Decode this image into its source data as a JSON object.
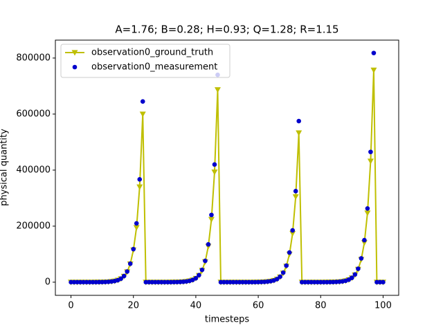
{
  "chart_data": {
    "type": "line",
    "title": "A=1.76; B=0.28; H=0.93; Q=1.28; R=1.15",
    "x_label": "timesteps",
    "y_label": "physical quantity",
    "x": [
      0,
      1,
      2,
      3,
      4,
      5,
      6,
      7,
      8,
      9,
      10,
      11,
      12,
      13,
      14,
      15,
      16,
      17,
      18,
      19,
      20,
      21,
      22,
      23,
      24,
      25,
      26,
      27,
      28,
      29,
      30,
      31,
      32,
      33,
      34,
      35,
      36,
      37,
      38,
      39,
      40,
      41,
      42,
      43,
      44,
      45,
      46,
      47,
      48,
      49,
      50,
      51,
      52,
      53,
      54,
      55,
      56,
      57,
      58,
      59,
      60,
      61,
      62,
      63,
      64,
      65,
      66,
      67,
      68,
      69,
      70,
      71,
      72,
      73,
      74,
      75,
      76,
      77,
      78,
      79,
      80,
      81,
      82,
      83,
      84,
      85,
      86,
      87,
      88,
      89,
      90,
      91,
      92,
      93,
      94,
      95,
      96,
      97,
      98,
      99,
      100
    ],
    "series": [
      {
        "name": "observation0_ground_truth",
        "color": "#bfbf00",
        "style": "line-triangle",
        "values": [
          2,
          3,
          5,
          9,
          15,
          26,
          45,
          80,
          140,
          250,
          430,
          750,
          1300,
          2300,
          4000,
          7000,
          12000,
          21000,
          37000,
          65000,
          115000,
          195000,
          340000,
          600000,
          2,
          3,
          6,
          10,
          17,
          30,
          50,
          90,
          160,
          280,
          480,
          850,
          1500,
          2600,
          4500,
          7800,
          13700,
          24000,
          42000,
          73000,
          128000,
          224000,
          393000,
          687000,
          0,
          1,
          1,
          2,
          4,
          7,
          13,
          23,
          40,
          70,
          120,
          210,
          370,
          650,
          1100,
          2000,
          3500,
          6100,
          10600,
          18600,
          32500,
          57000,
          100000,
          174000,
          305000,
          533000,
          2,
          3,
          6,
          10,
          18,
          32,
          55,
          97,
          170,
          300,
          520,
          910,
          1600,
          2800,
          4900,
          8600,
          15000,
          26000,
          46000,
          81000,
          141000,
          247000,
          432000,
          757000,
          0,
          0,
          0
        ]
      },
      {
        "name": "observation0_measurement",
        "color": "#0000cc",
        "style": "dots",
        "values": [
          2,
          3,
          5,
          9,
          15,
          27,
          46,
          80,
          140,
          260,
          440,
          780,
          1300,
          2400,
          4100,
          7000,
          12500,
          22000,
          38000,
          66000,
          118000,
          210000,
          367000,
          645000,
          2,
          3,
          6,
          10,
          17,
          30,
          52,
          92,
          160,
          285,
          490,
          870,
          1500,
          2700,
          4600,
          8000,
          14000,
          25000,
          44000,
          76000,
          135000,
          240000,
          420000,
          740000,
          0,
          1,
          1,
          2,
          4,
          7,
          13,
          24,
          41,
          72,
          125,
          215,
          380,
          670,
          1150,
          2100,
          3600,
          6300,
          11000,
          19500,
          34000,
          59000,
          106000,
          185000,
          325000,
          575000,
          2,
          3,
          6,
          11,
          19,
          33,
          57,
          100,
          175,
          310,
          540,
          940,
          1650,
          2900,
          5100,
          8900,
          15600,
          27500,
          48000,
          85000,
          150000,
          263000,
          465000,
          818000,
          0,
          0,
          0
        ]
      }
    ],
    "xlim": [
      -5,
      105
    ],
    "xticks": [
      0,
      20,
      40,
      60,
      80,
      100
    ],
    "ylim": [
      -47000,
      864000
    ],
    "yticks": [
      0,
      200000,
      400000,
      600000,
      800000
    ],
    "legend": "upper left"
  }
}
